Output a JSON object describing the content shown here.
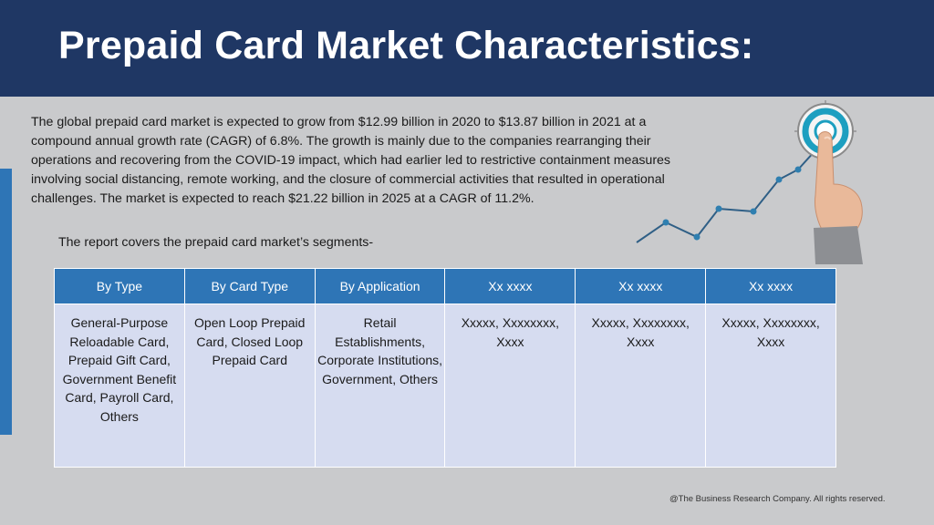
{
  "slide": {
    "title": "Prepaid Card Market Characteristics:",
    "intro": "The global prepaid card market is expected to grow from $12.99 billion in 2020 to $13.87 billion in 2021 at a compound annual growth rate (CAGR) of 6.8%. The growth is mainly due to the companies rearranging their operations and recovering from the COVID-19 impact, which had earlier led to restrictive containment measures involving social distancing, remote working, and the closure of commercial activities that resulted in operational challenges. The market is expected to reach $21.22 billion in 2025 at a CAGR of 11.2%.",
    "segments_line": "The report covers the prepaid card market’s segments-",
    "footer": "@The Business Research Company. All rights reserved."
  },
  "table": {
    "headers": [
      "By Type",
      "By Card Type",
      "By Application",
      "Xx xxxx",
      "Xx xxxx",
      "Xx xxxx"
    ],
    "cells": [
      "General-Purpose Reloadable Card, Prepaid Gift Card, Government Benefit Card, Payroll Card, Others",
      "Open Loop Prepaid Card, Closed Loop Prepaid Card",
      "Retail Establishments, Corporate Institutions, Government, Others",
      "Xxxxx, Xxxxxxxx, Xxxx",
      "Xxxxx, Xxxxxxxx, Xxxx",
      "Xxxxx, Xxxxxxxx, Xxxx"
    ]
  },
  "colors": {
    "header_band": "#1f3764",
    "accent_blue": "#2e75b6",
    "cell_fill": "#d6dcf0",
    "background": "#c9cacc"
  },
  "icons": [
    "growth-chart-icon",
    "target-icon",
    "pointing-hand-icon"
  ]
}
